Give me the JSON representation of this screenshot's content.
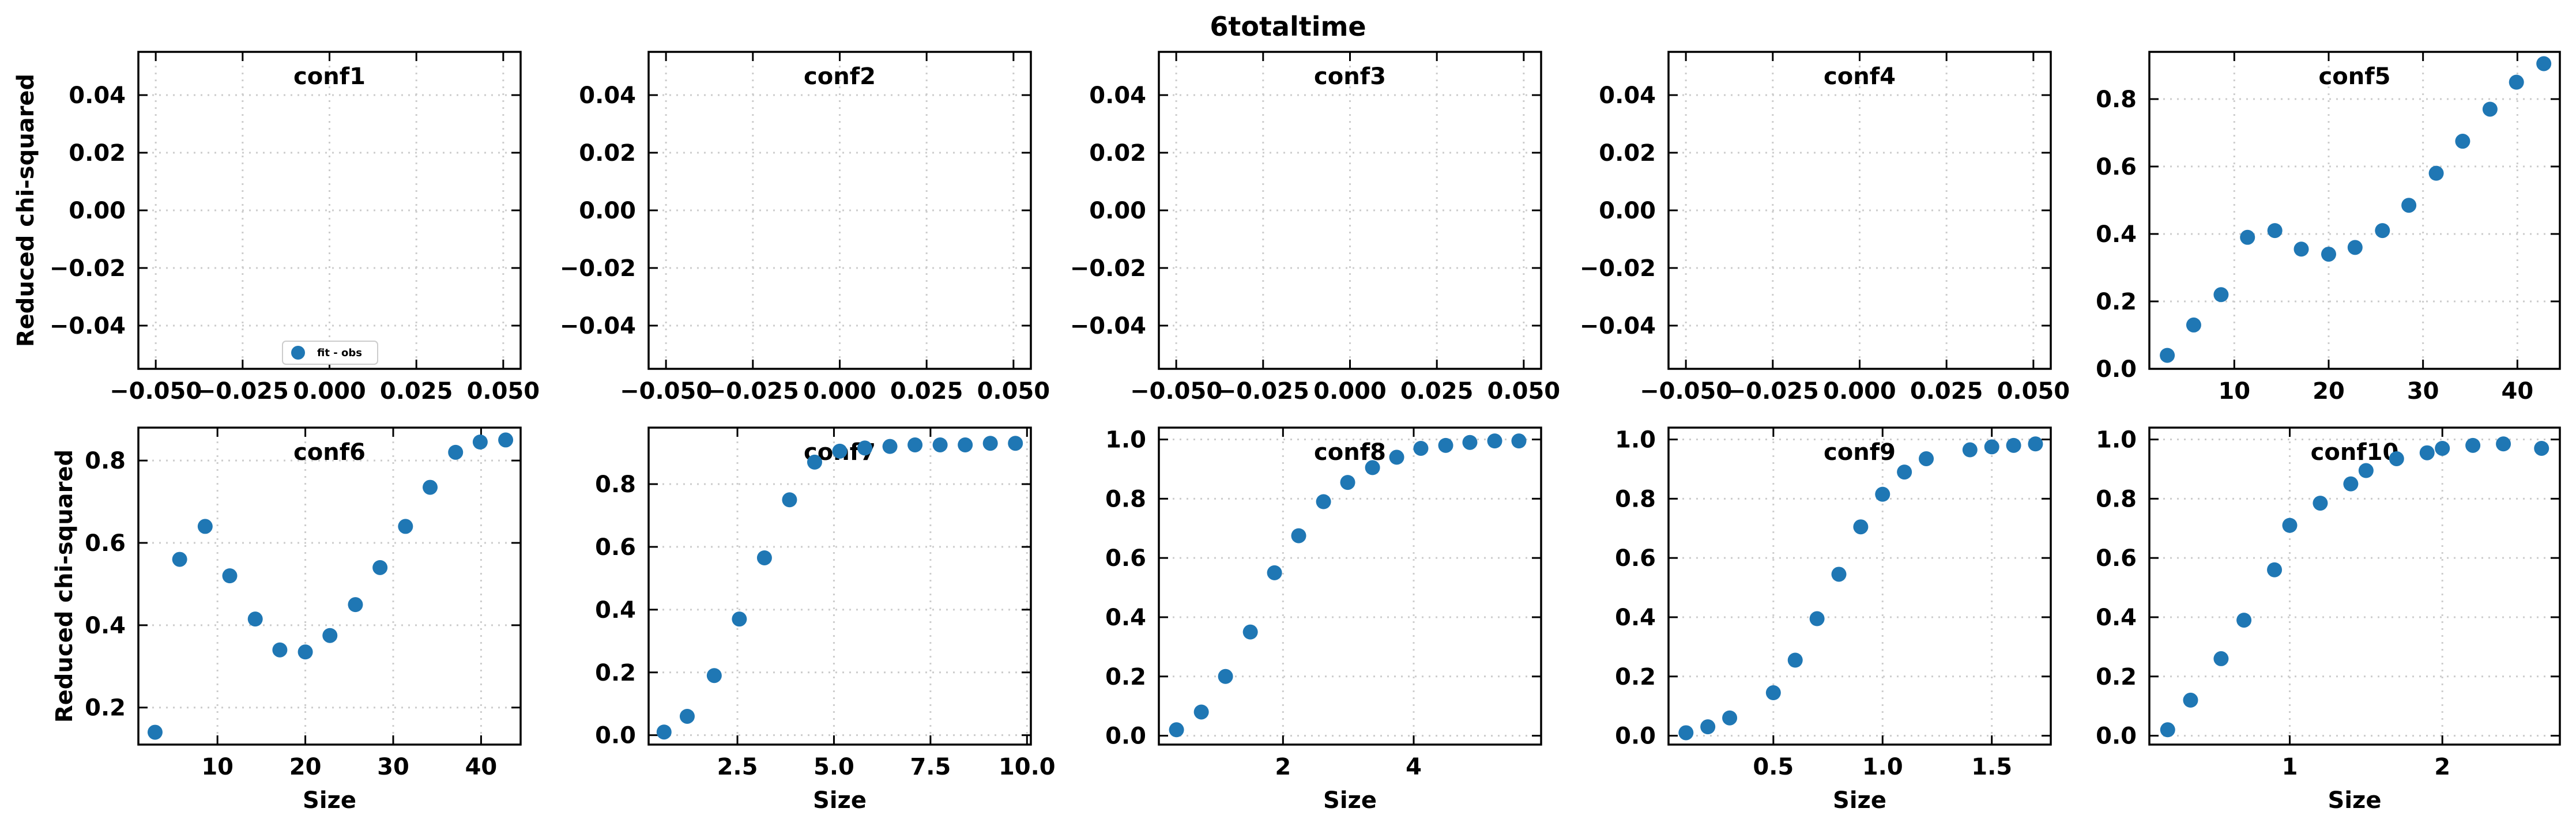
{
  "figure": {
    "title": "6totaltime",
    "marker_color": "#1f77b4",
    "grid": true,
    "grid_style": "dotted"
  },
  "chart_data": [
    {
      "type": "scatter",
      "title": "conf1",
      "xlabel": "",
      "ylabel": "Reduced chi-squared",
      "xlim": [
        -0.055,
        0.055
      ],
      "ylim": [
        -0.055,
        0.055
      ],
      "xticks": [
        -0.05,
        -0.025,
        0.0,
        0.025,
        0.05
      ],
      "xtick_labels": [
        "−0.050",
        "−0.025",
        "0.000",
        "0.025",
        "0.050"
      ],
      "yticks": [
        -0.04,
        -0.02,
        0.0,
        0.02,
        0.04
      ],
      "ytick_labels": [
        "−0.04",
        "−0.02",
        "0.00",
        "0.02",
        "0.04"
      ],
      "x": [],
      "y": [],
      "legend": {
        "label": "fit - obs",
        "position": "lower center"
      }
    },
    {
      "type": "scatter",
      "title": "conf2",
      "xlabel": "",
      "ylabel": "",
      "xlim": [
        -0.055,
        0.055
      ],
      "ylim": [
        -0.055,
        0.055
      ],
      "xticks": [
        -0.05,
        -0.025,
        0.0,
        0.025,
        0.05
      ],
      "xtick_labels": [
        "−0.050",
        "−0.025",
        "0.000",
        "0.025",
        "0.050"
      ],
      "yticks": [
        -0.04,
        -0.02,
        0.0,
        0.02,
        0.04
      ],
      "ytick_labels": [
        "−0.04",
        "−0.02",
        "0.00",
        "0.02",
        "0.04"
      ],
      "x": [],
      "y": []
    },
    {
      "type": "scatter",
      "title": "conf3",
      "xlabel": "",
      "ylabel": "",
      "xlim": [
        -0.055,
        0.055
      ],
      "ylim": [
        -0.055,
        0.055
      ],
      "xticks": [
        -0.05,
        -0.025,
        0.0,
        0.025,
        0.05
      ],
      "xtick_labels": [
        "−0.050",
        "−0.025",
        "0.000",
        "0.025",
        "0.050"
      ],
      "yticks": [
        -0.04,
        -0.02,
        0.0,
        0.02,
        0.04
      ],
      "ytick_labels": [
        "−0.04",
        "−0.02",
        "0.00",
        "0.02",
        "0.04"
      ],
      "x": [],
      "y": []
    },
    {
      "type": "scatter",
      "title": "conf4",
      "xlabel": "",
      "ylabel": "",
      "xlim": [
        -0.055,
        0.055
      ],
      "ylim": [
        -0.055,
        0.055
      ],
      "xticks": [
        -0.05,
        -0.025,
        0.0,
        0.025,
        0.05
      ],
      "xtick_labels": [
        "−0.050",
        "−0.025",
        "0.000",
        "0.025",
        "0.050"
      ],
      "yticks": [
        -0.04,
        -0.02,
        0.0,
        0.02,
        0.04
      ],
      "ytick_labels": [
        "−0.04",
        "−0.02",
        "0.00",
        "0.02",
        "0.04"
      ],
      "x": [],
      "y": []
    },
    {
      "type": "scatter",
      "title": "conf5",
      "xlabel": "",
      "ylabel": "",
      "xlim": [
        1.0,
        44.5
      ],
      "ylim": [
        0.0,
        0.94
      ],
      "xticks": [
        10,
        20,
        30,
        40
      ],
      "xtick_labels": [
        "10",
        "20",
        "30",
        "40"
      ],
      "yticks": [
        0.0,
        0.2,
        0.4,
        0.6,
        0.8
      ],
      "ytick_labels": [
        "0.0",
        "0.2",
        "0.4",
        "0.6",
        "0.8"
      ],
      "x": [
        2.9,
        5.7,
        8.6,
        11.4,
        14.3,
        17.1,
        20.0,
        22.8,
        25.7,
        28.5,
        31.4,
        34.2,
        37.1,
        39.9,
        42.8
      ],
      "y": [
        0.04,
        0.13,
        0.22,
        0.39,
        0.41,
        0.355,
        0.34,
        0.36,
        0.41,
        0.485,
        0.58,
        0.675,
        0.77,
        0.85,
        0.905
      ]
    },
    {
      "type": "scatter",
      "title": "conf6",
      "xlabel": "Size",
      "ylabel": "Reduced chi-squared",
      "xlim": [
        1.0,
        44.5
      ],
      "ylim": [
        0.11,
        0.88
      ],
      "xticks": [
        10,
        20,
        30,
        40
      ],
      "xtick_labels": [
        "10",
        "20",
        "30",
        "40"
      ],
      "yticks": [
        0.2,
        0.4,
        0.6,
        0.8
      ],
      "ytick_labels": [
        "0.2",
        "0.4",
        "0.6",
        "0.8"
      ],
      "x": [
        2.9,
        5.7,
        8.6,
        11.4,
        14.3,
        17.1,
        20.0,
        22.8,
        25.7,
        28.5,
        31.4,
        34.2,
        37.1,
        39.9,
        42.8
      ],
      "y": [
        0.14,
        0.56,
        0.64,
        0.52,
        0.415,
        0.34,
        0.335,
        0.375,
        0.45,
        0.54,
        0.64,
        0.735,
        0.82,
        0.845,
        0.85
      ]
    },
    {
      "type": "scatter",
      "title": "conf7",
      "xlabel": "Size",
      "ylabel": "",
      "xlim": [
        0.2,
        10.1
      ],
      "ylim": [
        -0.03,
        0.98
      ],
      "xticks": [
        2.5,
        5.0,
        7.5,
        10.0
      ],
      "xtick_labels": [
        "2.5",
        "5.0",
        "7.5",
        "10.0"
      ],
      "yticks": [
        0.0,
        0.2,
        0.4,
        0.6,
        0.8
      ],
      "ytick_labels": [
        "0.0",
        "0.2",
        "0.4",
        "0.6",
        "0.8"
      ],
      "x": [
        0.6,
        1.2,
        1.9,
        2.55,
        3.2,
        3.85,
        4.5,
        5.15,
        5.8,
        6.45,
        7.1,
        7.75,
        8.4,
        9.05,
        9.7
      ],
      "y": [
        0.01,
        0.06,
        0.19,
        0.37,
        0.565,
        0.75,
        0.87,
        0.905,
        0.915,
        0.92,
        0.925,
        0.925,
        0.925,
        0.93,
        0.93
      ]
    },
    {
      "type": "scatter",
      "title": "conf8",
      "xlabel": "Size",
      "ylabel": "",
      "xlim": [
        0.1,
        5.95
      ],
      "ylim": [
        -0.03,
        1.04
      ],
      "xticks": [
        2,
        4
      ],
      "xtick_labels": [
        "2",
        "4"
      ],
      "yticks": [
        0.0,
        0.2,
        0.4,
        0.6,
        0.8,
        1.0
      ],
      "ytick_labels": [
        "0.0",
        "0.2",
        "0.4",
        "0.6",
        "0.8",
        "1.0"
      ],
      "x": [
        0.37,
        0.75,
        1.12,
        1.5,
        1.87,
        2.24,
        2.62,
        2.99,
        3.37,
        3.74,
        4.11,
        4.49,
        4.86,
        5.24,
        5.61
      ],
      "y": [
        0.02,
        0.08,
        0.2,
        0.35,
        0.55,
        0.675,
        0.79,
        0.855,
        0.905,
        0.94,
        0.97,
        0.98,
        0.99,
        0.995,
        0.995
      ]
    },
    {
      "type": "scatter",
      "title": "conf9",
      "xlabel": "Size",
      "ylabel": "",
      "xlim": [
        0.02,
        1.77
      ],
      "ylim": [
        -0.03,
        1.04
      ],
      "xticks": [
        0.5,
        1.0,
        1.5
      ],
      "xtick_labels": [
        "0.5",
        "1.0",
        "1.5"
      ],
      "yticks": [
        0.0,
        0.2,
        0.4,
        0.6,
        0.8,
        1.0
      ],
      "ytick_labels": [
        "0.0",
        "0.2",
        "0.4",
        "0.6",
        "0.8",
        "1.0"
      ],
      "x": [
        0.1,
        0.2,
        0.3,
        0.5,
        0.6,
        0.7,
        0.8,
        0.9,
        1.0,
        1.1,
        1.2,
        1.4,
        1.5,
        1.6,
        1.7
      ],
      "y": [
        0.01,
        0.03,
        0.06,
        0.145,
        0.255,
        0.395,
        0.545,
        0.705,
        0.815,
        0.89,
        0.935,
        0.965,
        0.975,
        0.98,
        0.985
      ]
    },
    {
      "type": "scatter",
      "title": "conf10",
      "xlabel": "Size",
      "ylabel": "",
      "xlim": [
        0.08,
        2.77
      ],
      "ylim": [
        -0.03,
        1.04
      ],
      "xticks": [
        1,
        2
      ],
      "xtick_labels": [
        "1",
        "2"
      ],
      "yticks": [
        0.0,
        0.2,
        0.4,
        0.6,
        0.8,
        1.0
      ],
      "ytick_labels": [
        "0.0",
        "0.2",
        "0.4",
        "0.6",
        "0.8",
        "1.0"
      ],
      "x": [
        0.2,
        0.35,
        0.55,
        0.7,
        0.9,
        1.0,
        1.2,
        1.4,
        1.5,
        1.7,
        1.9,
        2.0,
        2.2,
        2.4,
        2.65
      ],
      "y": [
        0.02,
        0.12,
        0.26,
        0.39,
        0.56,
        0.71,
        0.785,
        0.85,
        0.895,
        0.935,
        0.955,
        0.97,
        0.98,
        0.985,
        0.97
      ]
    }
  ]
}
